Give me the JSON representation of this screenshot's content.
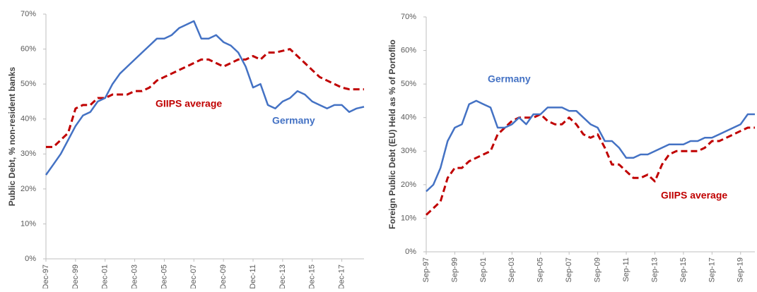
{
  "chart_data": [
    {
      "type": "line",
      "y_label": "Public Debt, % non-resident banks",
      "categories": [
        "Dec-97",
        null,
        null,
        null,
        "Dec-99",
        null,
        null,
        null,
        "Dec-01",
        null,
        null,
        null,
        "Dec-03",
        null,
        null,
        null,
        "Dec-05",
        null,
        null,
        null,
        "Dec-07",
        null,
        null,
        null,
        "Dec-09",
        null,
        null,
        null,
        "Dec-11",
        null,
        null,
        null,
        "Dec-13",
        null,
        null,
        null,
        "Dec-15",
        null,
        null,
        null,
        "Dec-17",
        null,
        null,
        null
      ],
      "series": [
        {
          "name": "Germany",
          "color": "#4472c4",
          "values": [
            24,
            27,
            30,
            34,
            38,
            41,
            42,
            45,
            46,
            50,
            53,
            55,
            57,
            59,
            61,
            63,
            63,
            64,
            66,
            67,
            68,
            63,
            63,
            64,
            62,
            61,
            59,
            55,
            49,
            50,
            44,
            43,
            45,
            46,
            48,
            47,
            45,
            44,
            43,
            44,
            44,
            42,
            43,
            43.5
          ]
        },
        {
          "name": "GIIPS average",
          "color": "#c00000",
          "dashed": true,
          "values": [
            32,
            32,
            34,
            36,
            43,
            44,
            44,
            46,
            46,
            47,
            47,
            47,
            48,
            48,
            49,
            51,
            52,
            53,
            54,
            55,
            56,
            57,
            57,
            56,
            55,
            56,
            57,
            57,
            58,
            57,
            59,
            59,
            59.5,
            60,
            58,
            56,
            54,
            52,
            51,
            50,
            49,
            48.5,
            48.5,
            48.5
          ]
        }
      ],
      "ylim": [
        0,
        70
      ],
      "yticks": [
        {
          "value": 0,
          "label": "0%"
        },
        {
          "value": 10,
          "label": "10%"
        },
        {
          "value": 20,
          "label": "20%"
        },
        {
          "value": 30,
          "label": "30%"
        },
        {
          "value": 40,
          "label": "40%"
        },
        {
          "value": 50,
          "label": "50%"
        },
        {
          "value": 60,
          "label": "60%"
        },
        {
          "value": 70,
          "label": "70%"
        }
      ]
    },
    {
      "type": "line",
      "y_label": "Foreign Public Debt (EU) Held as % of Portoflio",
      "categories": [
        "Sep-97",
        null,
        null,
        null,
        "Sep-99",
        null,
        null,
        null,
        "Sep-01",
        null,
        null,
        null,
        "Sep-03",
        null,
        null,
        null,
        "Sep-05",
        null,
        null,
        null,
        "Sep-07",
        null,
        null,
        null,
        "Sep-09",
        null,
        null,
        null,
        "Sep-11",
        null,
        null,
        null,
        "Sep-13",
        null,
        null,
        null,
        "Sep-15",
        null,
        null,
        null,
        "Sep-17",
        null,
        null,
        null,
        "Sep-19",
        null,
        null
      ],
      "series": [
        {
          "name": "Germany",
          "color": "#4472c4",
          "values": [
            18,
            20,
            25,
            33,
            37,
            38,
            44,
            45,
            44,
            43,
            37,
            37,
            38,
            40,
            38,
            41,
            41,
            43,
            43,
            43,
            42,
            42,
            40,
            38,
            37,
            33,
            33,
            31,
            28,
            28,
            29,
            29,
            30,
            31,
            32,
            32,
            32,
            33,
            33,
            34,
            34,
            35,
            36,
            37,
            38,
            41,
            41
          ]
        },
        {
          "name": "GIIPS average",
          "color": "#c00000",
          "dashed": true,
          "values": [
            11,
            13,
            15,
            22,
            25,
            25,
            27,
            28,
            29,
            30,
            35,
            37,
            39,
            40,
            40,
            40,
            41,
            39,
            38,
            38,
            40,
            38,
            35,
            34,
            35,
            31,
            26,
            26,
            24,
            22,
            22,
            23,
            21,
            26,
            29,
            30,
            30,
            30,
            30,
            31,
            33,
            33,
            34,
            35,
            36,
            37,
            37
          ]
        }
      ],
      "ylim": [
        0,
        70
      ],
      "yticks": [
        {
          "value": 0,
          "label": "0%"
        },
        {
          "value": 10,
          "label": "10%"
        },
        {
          "value": 20,
          "label": "20%"
        },
        {
          "value": 30,
          "label": "30%"
        },
        {
          "value": 40,
          "label": "40%"
        },
        {
          "value": 50,
          "label": "50%"
        },
        {
          "value": 60,
          "label": "60%"
        },
        {
          "value": 70,
          "label": "70%"
        }
      ]
    }
  ]
}
